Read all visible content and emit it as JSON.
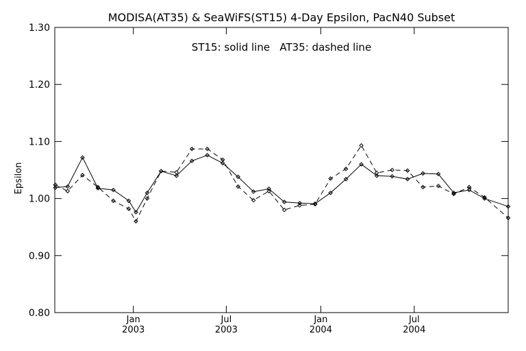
{
  "chart_data": {
    "type": "line",
    "title": "MODISA(AT35) & SeaWiFS(ST15) 4-Day Epsilon, PacN40 Subset",
    "annotation": "ST15: solid line   AT35: dashed line",
    "xlabel": "",
    "ylabel": "Epsilon",
    "xlim": [
      "2002-08-01",
      "2004-12-31"
    ],
    "ylim": [
      0.8,
      1.3
    ],
    "yticks": [
      "0.80",
      "0.90",
      "1.00",
      "1.10",
      "1.20",
      "1.30"
    ],
    "xticks": [
      {
        "date": "2003-01-01",
        "month": "Jan",
        "year": "2003"
      },
      {
        "date": "2003-07-01",
        "month": "Jul",
        "year": "2003"
      },
      {
        "date": "2004-01-01",
        "month": "Jan",
        "year": "2004"
      },
      {
        "date": "2004-07-01",
        "month": "Jul",
        "year": "2004"
      }
    ],
    "grid": false,
    "series": [
      {
        "name": "ST15",
        "line_style": "solid",
        "x": [
          "2002-08-02",
          "2002-08-26",
          "2002-09-24",
          "2002-10-24",
          "2002-11-23",
          "2002-12-23",
          "2003-01-06",
          "2003-01-28",
          "2003-02-24",
          "2003-03-26",
          "2003-04-25",
          "2003-05-25",
          "2003-06-24",
          "2003-07-24",
          "2003-08-23",
          "2003-09-22",
          "2003-10-22",
          "2003-11-21",
          "2003-12-21",
          "2004-01-20",
          "2004-02-19",
          "2004-03-20",
          "2004-04-19",
          "2004-05-19",
          "2004-06-18",
          "2004-07-18",
          "2004-08-17",
          "2004-09-16",
          "2004-10-16",
          "2004-11-15",
          "2004-12-31"
        ],
        "y": [
          1.019,
          1.021,
          1.072,
          1.018,
          1.015,
          0.996,
          0.976,
          1.01,
          1.048,
          1.04,
          1.066,
          1.076,
          1.062,
          1.038,
          1.012,
          1.017,
          0.994,
          0.992,
          0.991,
          1.01,
          1.034,
          1.06,
          1.04,
          1.039,
          1.034,
          1.044,
          1.043,
          1.01,
          1.015,
          1.0,
          0.986
        ]
      },
      {
        "name": "AT35",
        "line_style": "dashed",
        "x": [
          "2002-08-02",
          "2002-08-26",
          "2002-09-24",
          "2002-10-24",
          "2002-11-23",
          "2002-12-23",
          "2003-01-06",
          "2003-01-28",
          "2003-02-24",
          "2003-03-26",
          "2003-04-25",
          "2003-05-25",
          "2003-06-24",
          "2003-07-24",
          "2003-08-23",
          "2003-09-22",
          "2003-10-22",
          "2003-11-21",
          "2003-12-21",
          "2004-01-20",
          "2004-02-19",
          "2004-03-20",
          "2004-04-19",
          "2004-05-19",
          "2004-06-18",
          "2004-07-18",
          "2004-08-17",
          "2004-09-16",
          "2004-10-16",
          "2004-11-15",
          "2004-12-31"
        ],
        "y": [
          1.024,
          1.013,
          1.041,
          1.02,
          0.996,
          0.982,
          0.96,
          1.0,
          1.048,
          1.046,
          1.087,
          1.087,
          1.068,
          1.021,
          0.997,
          1.013,
          0.98,
          0.988,
          0.99,
          1.035,
          1.052,
          1.093,
          1.045,
          1.05,
          1.049,
          1.02,
          1.022,
          1.008,
          1.02,
          1.002,
          0.966
        ]
      }
    ]
  }
}
